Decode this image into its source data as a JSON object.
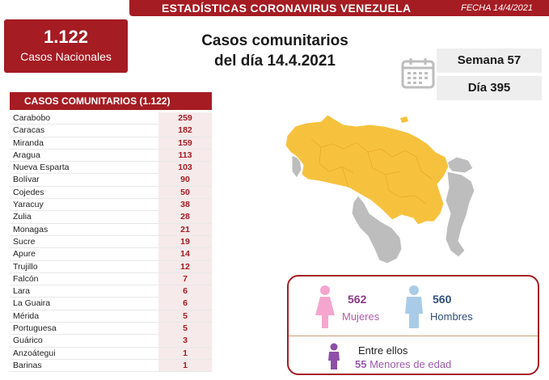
{
  "header": {
    "title": "ESTADÍSTICAS CORONAVIRUS VENEZUELA",
    "date": "FECHA 14/4/2021"
  },
  "total": {
    "number": "1.122",
    "label": "Casos Nacionales"
  },
  "headline": {
    "line1": "Casos comunitarios",
    "line2": "del día 14.4.2021"
  },
  "calendar": {
    "week": "Semana 57",
    "day": "Día 395"
  },
  "table": {
    "title": "CASOS COMUNITARIOS (1.122)",
    "rows": [
      {
        "state": "Carabobo",
        "value": "259"
      },
      {
        "state": "Caracas",
        "value": "182"
      },
      {
        "state": "Miranda",
        "value": "159"
      },
      {
        "state": "Aragua",
        "value": "113"
      },
      {
        "state": "Nueva Esparta",
        "value": "103"
      },
      {
        "state": "Bolívar",
        "value": "90"
      },
      {
        "state": "Cojedes",
        "value": "50"
      },
      {
        "state": "Yaracuy",
        "value": "38"
      },
      {
        "state": "Zulia",
        "value": "28"
      },
      {
        "state": "Monagas",
        "value": "21"
      },
      {
        "state": "Sucre",
        "value": "19"
      },
      {
        "state": "Apure",
        "value": "14"
      },
      {
        "state": "Trujillo",
        "value": "12"
      },
      {
        "state": "Falcón",
        "value": "7"
      },
      {
        "state": "Lara",
        "value": "6"
      },
      {
        "state": "La Guaira",
        "value": "6"
      },
      {
        "state": "Mérida",
        "value": "5"
      },
      {
        "state": "Portuguesa",
        "value": "5"
      },
      {
        "state": "Guárico",
        "value": "3"
      },
      {
        "state": "Anzoátegui",
        "value": "1"
      },
      {
        "state": "Barinas",
        "value": "1"
      }
    ]
  },
  "gender": {
    "women_count": "562",
    "women_label": "Mujeres",
    "men_count": "560",
    "men_label": "Hombres",
    "among_label": "Entre ellos",
    "minors_count": "55",
    "minors_label": "Menores de edad"
  },
  "colors": {
    "brand_red": "#a51c23",
    "map_highlight": "#f6c23e",
    "map_gray": "#bdbdbd",
    "women": "#f4a6cf",
    "men": "#a9cbe8",
    "minors": "#8e4fa8"
  },
  "icons": {
    "calendar": "calendar-icon",
    "woman": "woman-icon",
    "man": "man-icon",
    "child": "child-icon",
    "map": "venezuela-map"
  }
}
